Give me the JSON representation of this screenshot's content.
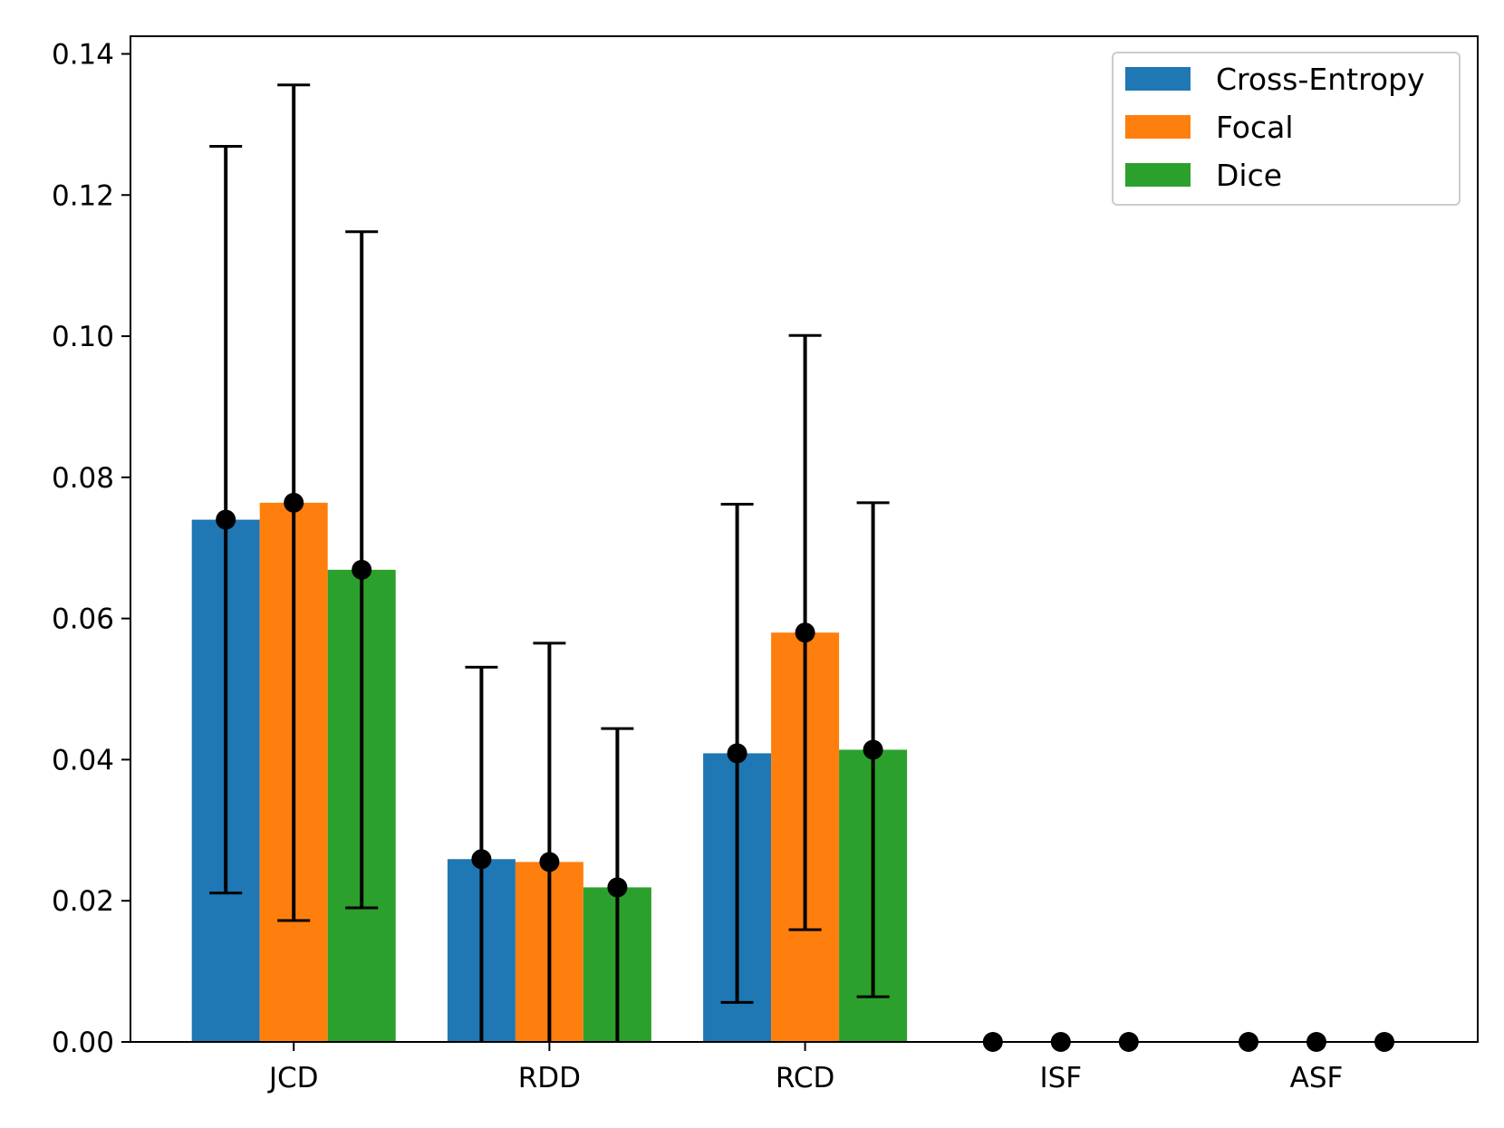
{
  "chart_data": {
    "type": "bar",
    "title": "",
    "xlabel": "",
    "ylabel": "",
    "categories": [
      "JCD",
      "RDD",
      "RCD",
      "ISF",
      "ASF"
    ],
    "ylim": [
      0,
      0.1425
    ],
    "yticks": [
      0.0,
      0.02,
      0.04,
      0.06,
      0.08,
      0.1,
      0.12,
      0.14
    ],
    "ytick_labels": [
      "0.00",
      "0.02",
      "0.04",
      "0.06",
      "0.08",
      "0.10",
      "0.12",
      "0.14"
    ],
    "grid": false,
    "legend_position": "top-right",
    "series": [
      {
        "name": "Cross-Entropy",
        "color": "#1f77b4",
        "values": [
          0.074,
          0.0259,
          0.0409,
          0.0,
          0.0
        ],
        "error": [
          0.0529,
          0.0272,
          0.0353,
          0.0,
          0.0
        ]
      },
      {
        "name": "Focal",
        "color": "#ff7f0e",
        "values": [
          0.0764,
          0.0255,
          0.058,
          0.0,
          0.0
        ],
        "error": [
          0.0592,
          0.031,
          0.0421,
          0.0,
          0.0
        ]
      },
      {
        "name": "Dice",
        "color": "#2ca02c",
        "values": [
          0.0669,
          0.0219,
          0.0414,
          0.0,
          0.0
        ],
        "error": [
          0.0479,
          0.0225,
          0.035,
          0.0,
          0.0
        ]
      }
    ]
  }
}
